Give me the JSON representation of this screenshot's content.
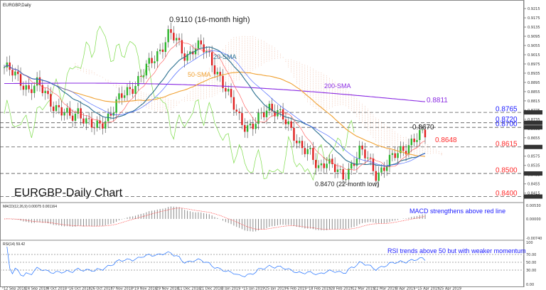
{
  "header": {
    "symbol": "EURGBP,Daily"
  },
  "chart_data": [
    {
      "type": "candlestick",
      "title": "EURGBP-Daily Chart",
      "ylim": [
        0.838,
        0.924
      ],
      "y_ticks": [
        "0.9215",
        "0.9175",
        "0.9135",
        "0.9095",
        "0.9055",
        "0.9015",
        "0.8975",
        "0.8935",
        "0.8895",
        "0.8855",
        "0.8815",
        "0.8775",
        "0.8735",
        "0.8695",
        "0.8655",
        "0.8615",
        "0.8575",
        "0.8535",
        "0.8495",
        "0.8455",
        "0.8415"
      ],
      "x_ticks": [
        "12 Sep 2018",
        "24 Sep 2018",
        "4 Oct 2018",
        "16 Oct 2018",
        "26 Oct 2018",
        "7 Nov 2018",
        "19 Nov 2018",
        "29 Nov 2018",
        "11 Dec 2018",
        "21 Dec 2018",
        "3 Jan 2019",
        "15 Jan 2019",
        "25 Jan 2019",
        "6 Feb 2019",
        "18 Feb 2019",
        "28 Feb 2019",
        "12 Mar 2019",
        "22 Mar 2019",
        "3 Apr 2019",
        "15 Apr 2019",
        "25 Apr 2019"
      ],
      "price_anchors": [
        0.896,
        0.893,
        0.8905,
        0.8865,
        0.888,
        0.885,
        0.88,
        0.876,
        0.874,
        0.878,
        0.872,
        0.869,
        0.873,
        0.877,
        0.882,
        0.886,
        0.89,
        0.894,
        0.899,
        0.905,
        0.911,
        0.906,
        0.901,
        0.905,
        0.904,
        0.9,
        0.893,
        0.884,
        0.878,
        0.872,
        0.869,
        0.874,
        0.88,
        0.877,
        0.872,
        0.868,
        0.862,
        0.858,
        0.852,
        0.857,
        0.852,
        0.847,
        0.854,
        0.86,
        0.856,
        0.85,
        0.853,
        0.856,
        0.86,
        0.863,
        0.865,
        0.867
      ],
      "horizontal_levels": [
        {
          "label": "0.8765",
          "value": 0.8765,
          "color": "#1a1aff"
        },
        {
          "label": "0.8720",
          "value": 0.872,
          "color": "#1a1aff"
        },
        {
          "label": "0.8700",
          "value": 0.87,
          "color": "#1a1aff"
        },
        {
          "label": "0.8615",
          "value": 0.8615,
          "color": "#ff2a2a"
        },
        {
          "label": "0.8500",
          "value": 0.85,
          "color": "#ff2a2a"
        },
        {
          "label": "0.8400",
          "value": 0.84,
          "color": "#ff2a2a"
        }
      ],
      "current_price_label": "0.8648",
      "series": [
        {
          "name": "20-SMA",
          "color": "#2a6f8f"
        },
        {
          "name": "50-SMA",
          "color": "#f0a030"
        },
        {
          "name": "200-SMA",
          "color": "#8a2be2"
        }
      ],
      "annotations": [
        {
          "text": "0.9110 (16-month high)",
          "x": "3 Jan 2019",
          "y": 0.911
        },
        {
          "text": "0.8470 (22-month low)",
          "x": "12 Mar 2019",
          "y": 0.847
        },
        {
          "text": "0.8670",
          "x": "25 Apr 2019",
          "y": 0.867
        },
        {
          "text": "0.8811",
          "x": "25 Apr 2019",
          "y": 0.8811
        }
      ]
    },
    {
      "type": "bar",
      "title": "MACD(12,26,9) 0.00075 0.001164",
      "annotation": "MACD strengthens above red line",
      "y_ticks": [
        "0.00530",
        "0.00000",
        "-0.00740"
      ],
      "signal_color": "#ff3030",
      "hist_color": "#888888"
    },
    {
      "type": "line",
      "title": "RSI(14) 59.42",
      "annotation": "RSI trends above 50 but with weaker momentum",
      "ylim": [
        0,
        100
      ],
      "y_ticks": [
        "100",
        "70.00",
        "50.00",
        "30.00",
        "0.00"
      ],
      "line_color": "#1e6fff"
    }
  ]
}
